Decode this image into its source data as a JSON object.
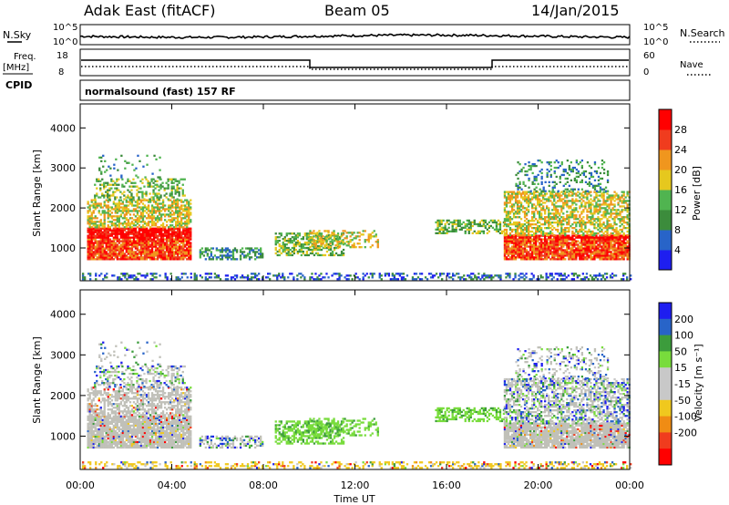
{
  "header": {
    "station": "Adak East (fitACF)",
    "beam": "Beam 05",
    "date": "14/Jan/2015"
  },
  "noise_panel": {
    "left_label": "N.Sky",
    "right_label": "N.Search",
    "left_ticks": [
      "10^5",
      "10^0"
    ],
    "right_ticks": [
      "10^5",
      "10^0"
    ]
  },
  "freq_panel": {
    "left_label_1": "Freq.",
    "left_label_2": "[MHz]",
    "left_ticks": [
      "18",
      "8"
    ],
    "right_label": "Nave",
    "right_ticks": [
      "60",
      "0"
    ],
    "cpid_label": "CPID",
    "cpid_value": "normalsound (fast) 157 RF"
  },
  "colors": {
    "power_scale": [
      "#1e1ef0",
      "#2864c8",
      "#3c8c3c",
      "#50b450",
      "#e6c81e",
      "#f0961e",
      "#f03c1e",
      "#ff0000"
    ],
    "velocity_scale": [
      "#ff0000",
      "#f03c1e",
      "#f08c14",
      "#f0c81e",
      "#c8c8c8",
      "#c8c8c8",
      "#78dc3c",
      "#3c9c3c",
      "#2864c8",
      "#1e1ef0"
    ],
    "ground_scatter": "#c0c0b8"
  },
  "chart_data": [
    {
      "type": "heatmap",
      "title": "",
      "xlabel": "Time UT",
      "ylabel": "Slant Range [km]",
      "x_ticks": [
        "00:00",
        "04:00",
        "08:00",
        "12:00",
        "16:00",
        "20:00",
        "00:00"
      ],
      "y_ticks": [
        "1000",
        "2000",
        "3000",
        "4000"
      ],
      "xlim": [
        "00:00",
        "24:00"
      ],
      "ylim": [
        180,
        4600
      ],
      "colorbar": {
        "label": "Power [dB]",
        "range": [
          0,
          32
        ],
        "ticks": [
          "4",
          "8",
          "12",
          "16",
          "20",
          "24",
          "28"
        ]
      }
    },
    {
      "type": "heatmap",
      "title": "",
      "xlabel": "Time UT",
      "ylabel": "Slant Range [km]",
      "x_ticks": [
        "00:00",
        "04:00",
        "08:00",
        "12:00",
        "16:00",
        "20:00",
        "00:00"
      ],
      "y_ticks": [
        "1000",
        "2000",
        "3000",
        "4000"
      ],
      "xlim": [
        "00:00",
        "24:00"
      ],
      "ylim": [
        180,
        4600
      ],
      "colorbar": {
        "label": "Velocity [m s⁻¹]",
        "range": [
          -250,
          250
        ],
        "ticks": [
          "200",
          "100",
          "50",
          "15",
          "-15",
          "-50",
          "-100",
          "-200"
        ]
      }
    }
  ]
}
